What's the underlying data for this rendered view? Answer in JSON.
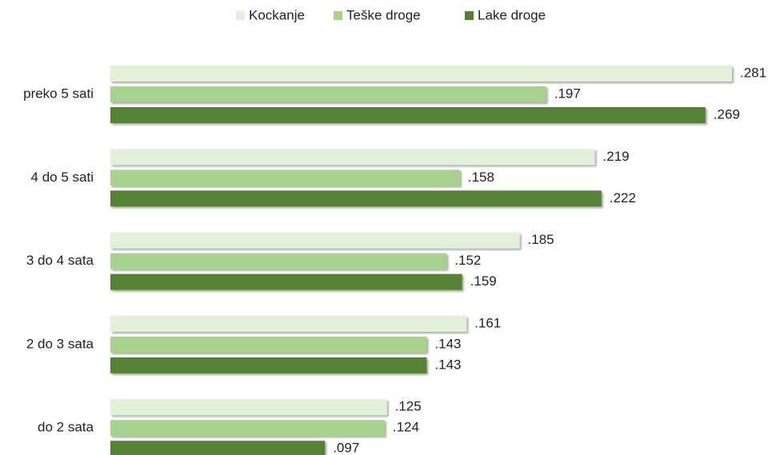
{
  "chart_data": {
    "type": "bar",
    "orientation": "horizontal",
    "categories": [
      "preko 5 sati",
      "4 do 5 sati",
      "3 do 4 sata",
      "2 do 3 sata",
      "do 2 sata"
    ],
    "series": [
      {
        "name": "Kockanje",
        "color": "#e2efd9",
        "values": [
          0.281,
          0.219,
          0.185,
          0.161,
          0.125
        ],
        "value_labels": [
          ".281",
          ".219",
          ".185",
          ".161",
          ".125"
        ]
      },
      {
        "name": "Teške droge",
        "color": "#a9d18e",
        "values": [
          0.197,
          0.158,
          0.152,
          0.143,
          0.124
        ],
        "value_labels": [
          ".197",
          ".158",
          ".152",
          ".143",
          ".124"
        ]
      },
      {
        "name": "Lake droge",
        "color": "#548235",
        "values": [
          0.269,
          0.222,
          0.159,
          0.143,
          0.097
        ],
        "value_labels": [
          ".269",
          ".222",
          ".159",
          ".143",
          ".097"
        ]
      }
    ],
    "legend": "top"
  }
}
